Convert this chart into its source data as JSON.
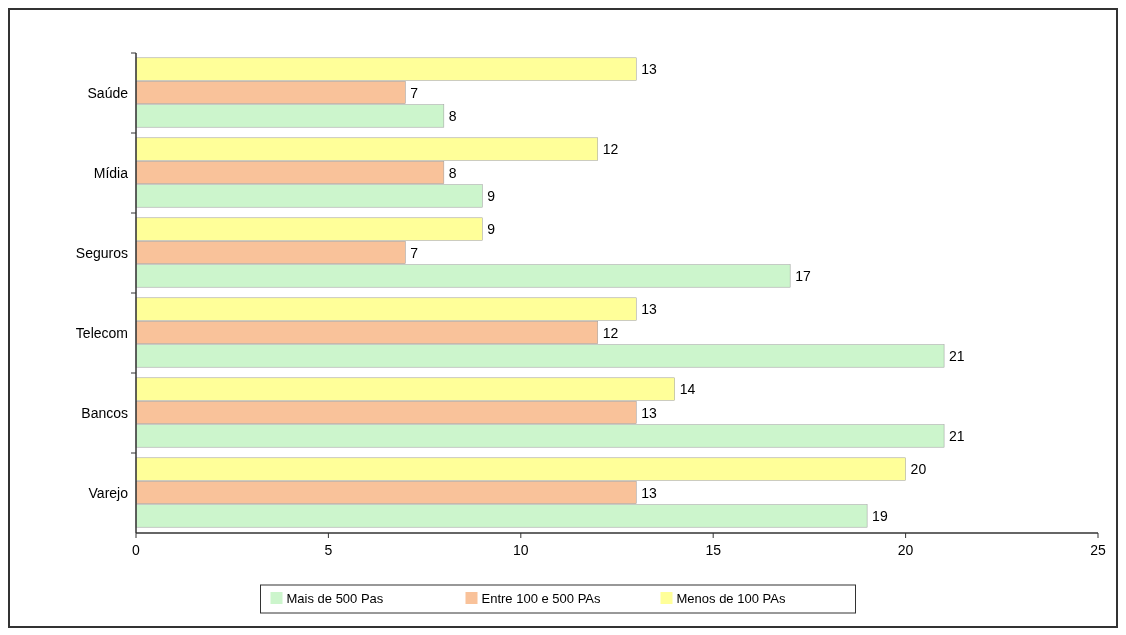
{
  "chart_data": {
    "type": "bar",
    "orientation": "horizontal",
    "categories": [
      "Saúde",
      "Mídia",
      "Seguros",
      "Telecom",
      "Bancos",
      "Varejo"
    ],
    "series": [
      {
        "name": "Mais de 500 Pas",
        "color": "#ccf5cc",
        "values": [
          8,
          9,
          17,
          21,
          21,
          19
        ]
      },
      {
        "name": "Entre 100 e 500 PAs",
        "color": "#f9c29a",
        "values": [
          7,
          8,
          7,
          12,
          13,
          13
        ]
      },
      {
        "name": "Menos de 100 PAs",
        "color": "#ffff99",
        "values": [
          13,
          12,
          9,
          13,
          14,
          20
        ]
      }
    ],
    "xlim": [
      0,
      25
    ],
    "xticks": [
      0,
      5,
      10,
      15,
      20,
      25
    ],
    "data_labels": true,
    "legend": "bottom",
    "grid": false
  }
}
